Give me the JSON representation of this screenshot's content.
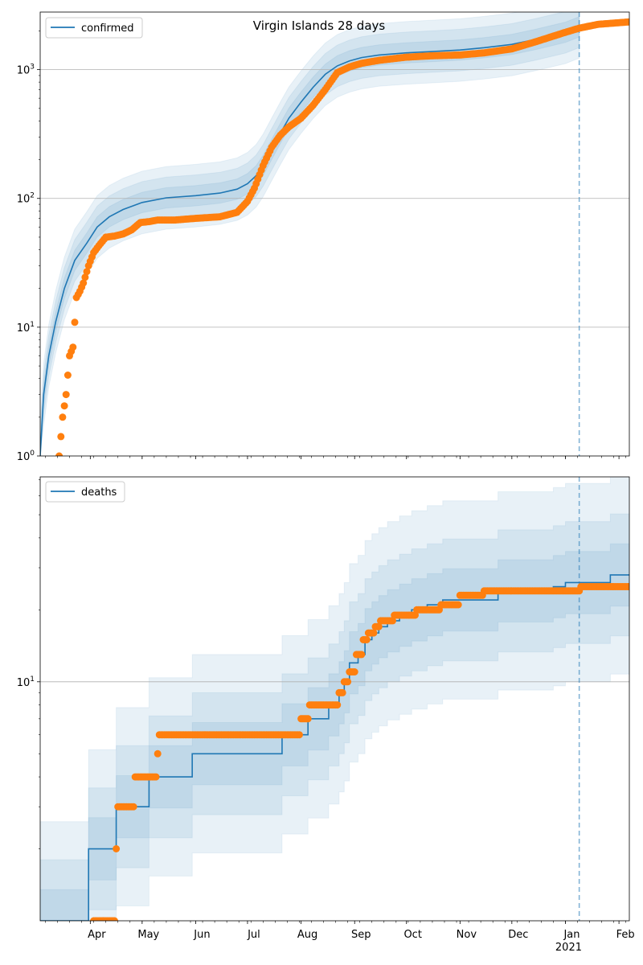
{
  "chart_data": [
    {
      "type": "line",
      "title": "Virgin Islands 28 days",
      "yscale": "log",
      "ylim": [
        1,
        2800
      ],
      "grid": "y-major",
      "legend": {
        "position": "top-left",
        "entries": [
          "confirmed"
        ]
      },
      "y_ticks": [
        {
          "value": 1,
          "base": "10",
          "exp": "0"
        },
        {
          "value": 10,
          "base": "10",
          "exp": "1"
        },
        {
          "value": 100,
          "base": "10",
          "exp": "2"
        },
        {
          "value": 1000,
          "base": "10",
          "exp": "3"
        }
      ],
      "x_ticks": [
        "Apr",
        "May",
        "Jun",
        "Jul",
        "Aug",
        "Sep",
        "Oct",
        "Nov",
        "Dec",
        "Jan",
        "Feb"
      ],
      "x_year_label": "2021",
      "forecast_start": "2021-01-09",
      "xlim": [
        "2020-03-03",
        "2021-02-07"
      ],
      "series": [
        {
          "name": "confirmed",
          "kind": "model",
          "x": [
            "2020-03-03",
            "2020-03-05",
            "2020-03-08",
            "2020-03-12",
            "2020-03-17",
            "2020-03-23",
            "2020-03-30",
            "2020-04-05",
            "2020-04-12",
            "2020-04-20",
            "2020-05-01",
            "2020-05-15",
            "2020-06-01",
            "2020-06-15",
            "2020-06-25",
            "2020-07-01",
            "2020-07-06",
            "2020-07-10",
            "2020-07-15",
            "2020-07-20",
            "2020-07-25",
            "2020-08-01",
            "2020-08-08",
            "2020-08-15",
            "2020-08-22",
            "2020-08-29",
            "2020-09-05",
            "2020-09-15",
            "2020-10-01",
            "2020-10-15",
            "2020-11-01",
            "2020-11-15",
            "2020-12-01",
            "2020-12-15",
            "2021-01-01",
            "2021-01-09"
          ],
          "y": [
            1,
            3,
            6,
            11,
            20,
            33,
            45,
            60,
            72,
            82,
            93,
            101,
            105,
            110,
            118,
            130,
            150,
            180,
            240,
            320,
            420,
            560,
            730,
            920,
            1070,
            1170,
            1240,
            1300,
            1350,
            1380,
            1420,
            1480,
            1570,
            1720,
            1950,
            2150
          ]
        },
        {
          "name": "confirmed-observed",
          "kind": "observed",
          "x": [
            "2020-03-14",
            "2020-03-16",
            "2020-03-18",
            "2020-03-20",
            "2020-03-22",
            "2020-03-24",
            "2020-03-26",
            "2020-03-28",
            "2020-03-31",
            "2020-04-03",
            "2020-04-06",
            "2020-04-10",
            "2020-04-15",
            "2020-04-20",
            "2020-04-25",
            "2020-04-30",
            "2020-05-05",
            "2020-05-10",
            "2020-05-20",
            "2020-06-01",
            "2020-06-15",
            "2020-06-25",
            "2020-07-01",
            "2020-07-05",
            "2020-07-10",
            "2020-07-15",
            "2020-07-20",
            "2020-07-25",
            "2020-08-01",
            "2020-08-08",
            "2020-08-15",
            "2020-08-22",
            "2020-08-29",
            "2020-09-05",
            "2020-09-15",
            "2020-10-01",
            "2020-10-15",
            "2020-11-01",
            "2020-11-15",
            "2020-12-01",
            "2020-12-15",
            "2021-01-01",
            "2021-01-09",
            "2021-01-20",
            "2021-02-07"
          ],
          "y": [
            1,
            2,
            3,
            6,
            7,
            17,
            19,
            22,
            30,
            38,
            43,
            50,
            51,
            53,
            57,
            65,
            66,
            68,
            68,
            70,
            72,
            78,
            95,
            120,
            180,
            250,
            310,
            360,
            420,
            530,
            700,
            950,
            1050,
            1120,
            1180,
            1250,
            1280,
            1300,
            1350,
            1450,
            1650,
            1950,
            2100,
            2250,
            2350
          ]
        }
      ]
    },
    {
      "type": "line",
      "title": "",
      "yscale": "log",
      "ylim": [
        1,
        72
      ],
      "grid": "y-major",
      "legend": {
        "position": "top-left",
        "entries": [
          "deaths"
        ]
      },
      "y_ticks": [
        {
          "value": 10,
          "base": "10",
          "exp": "1"
        }
      ],
      "x_ticks": [
        "Apr",
        "May",
        "Jun",
        "Jul",
        "Aug",
        "Sep",
        "Oct",
        "Nov",
        "Dec",
        "Jan",
        "Feb"
      ],
      "x_year_label": "2021",
      "forecast_start": "2021-01-09",
      "xlim": [
        "2020-03-03",
        "2021-02-07"
      ],
      "series": [
        {
          "name": "deaths",
          "kind": "model-step",
          "x": [
            "2020-03-03",
            "2020-03-31",
            "2020-04-16",
            "2020-05-05",
            "2020-05-30",
            "2020-07-15",
            "2020-07-21",
            "2020-08-05",
            "2020-08-17",
            "2020-08-23",
            "2020-08-26",
            "2020-08-29",
            "2020-09-03",
            "2020-09-07",
            "2020-09-11",
            "2020-09-15",
            "2020-09-20",
            "2020-09-27",
            "2020-10-04",
            "2020-10-13",
            "2020-10-22",
            "2020-11-05",
            "2020-11-23",
            "2020-12-07",
            "2020-12-25",
            "2021-01-01",
            "2021-01-09",
            "2021-01-27",
            "2021-02-07"
          ],
          "y": [
            1,
            2,
            3,
            4,
            5,
            5,
            6,
            7,
            8,
            9,
            10,
            12,
            13,
            15,
            16,
            17,
            18,
            19,
            20,
            21,
            22,
            22,
            24,
            24,
            25,
            26,
            26,
            28,
            28
          ]
        },
        {
          "name": "deaths-observed",
          "kind": "observed",
          "x": [
            "2020-04-03",
            "2020-04-10",
            "2020-04-16",
            "2020-04-17",
            "2020-04-27",
            "2020-05-10",
            "2020-05-11",
            "2020-07-20",
            "2020-08-01",
            "2020-08-06",
            "2020-08-23",
            "2020-08-26",
            "2020-08-29",
            "2020-09-02",
            "2020-09-06",
            "2020-09-09",
            "2020-09-13",
            "2020-09-16",
            "2020-09-24",
            "2020-10-07",
            "2020-10-21",
            "2020-11-01",
            "2020-11-15",
            "2020-12-15",
            "2021-01-05",
            "2021-01-10",
            "2021-02-07"
          ],
          "y": [
            1,
            1,
            2,
            3,
            4,
            5,
            6,
            6,
            7,
            8,
            9,
            10,
            11,
            13,
            15,
            16,
            17,
            18,
            19,
            20,
            21,
            23,
            24,
            24,
            24,
            25,
            25
          ]
        }
      ]
    }
  ]
}
